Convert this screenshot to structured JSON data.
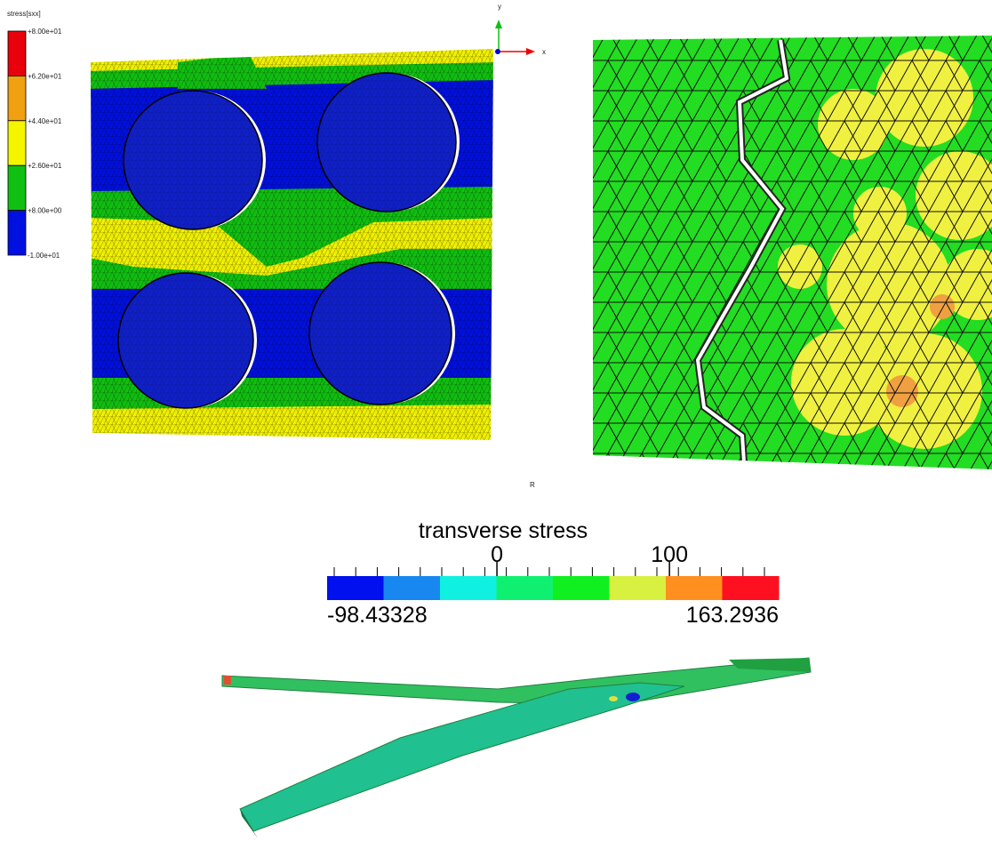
{
  "panel_a": {
    "legend": {
      "title": "stress[sxx]",
      "labels": [
        "+8.00e+01",
        "+6.20e+01",
        "+4.40e+01",
        "+2.60e+01",
        "+8.00e+00",
        "-1.00e+01"
      ],
      "colors": [
        "#e8000b",
        "#f0a010",
        "#f5f500",
        "#10c010",
        "#0010e0"
      ]
    },
    "axis_y": "y",
    "axis_x": "x"
  },
  "panel_b_label": "R",
  "colorbar": {
    "title": "transverse stress",
    "min": -98.43328,
    "max": 163.2936,
    "ticks": [
      0,
      100
    ],
    "colors": [
      "#0010ee",
      "#1888f0",
      "#10f0e0",
      "#10f070",
      "#10f020",
      "#d8f040",
      "#ff9020",
      "#ff1020"
    ]
  }
}
